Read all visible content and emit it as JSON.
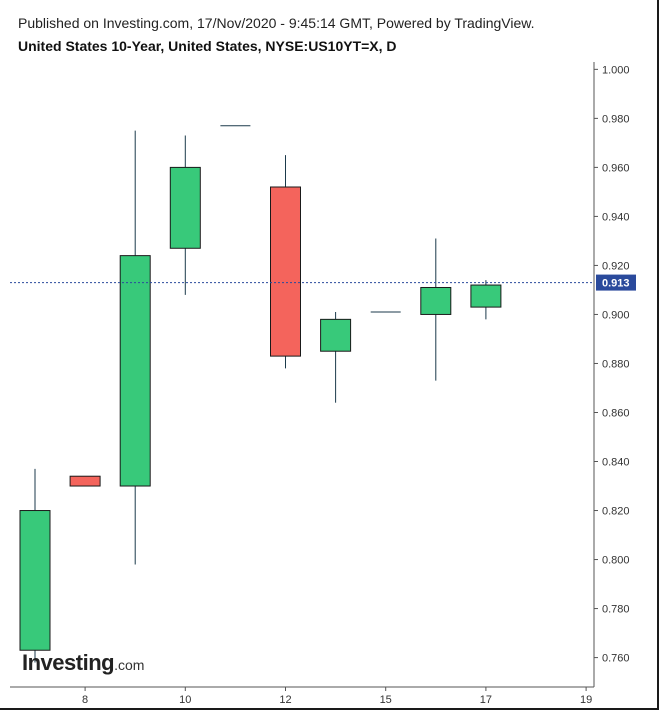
{
  "header": {
    "published": "Published on Investing.com, 17/Nov/2020 - 9:45:14 GMT, Powered by TradingView.",
    "title": "United States 10-Year, United States, NYSE:US10YT=X, D"
  },
  "logo": {
    "main": "Investing",
    "suffix": ".com"
  },
  "colors": {
    "up": "#38c97a",
    "down": "#f4645c",
    "wick": "#1b3a4b",
    "current_line": "#2a4a9c",
    "badge": "#2a4a9c"
  },
  "chart_data": {
    "type": "candlestick",
    "title": "United States 10-Year, United States, NYSE:US10YT=X, D",
    "x_tick_labels": [
      "8",
      "10",
      "12",
      "15",
      "17",
      "19"
    ],
    "y_tick_labels": [
      "1.000",
      "0.980",
      "0.960",
      "0.940",
      "0.920",
      "0.900",
      "0.880",
      "0.860",
      "0.840",
      "0.820",
      "0.800",
      "0.780",
      "0.760"
    ],
    "ylim": [
      0.748,
      1.003
    ],
    "current_price": 0.913,
    "current_price_label": "0.913",
    "candles": [
      {
        "open": 0.763,
        "high": 0.837,
        "low": 0.758,
        "close": 0.82
      },
      {
        "open": 0.834,
        "high": 0.834,
        "low": 0.83,
        "close": 0.83
      },
      {
        "open": 0.83,
        "high": 0.975,
        "low": 0.798,
        "close": 0.924
      },
      {
        "open": 0.927,
        "high": 0.973,
        "low": 0.908,
        "close": 0.96
      },
      {
        "open": 0.977,
        "high": 0.977,
        "low": 0.977,
        "close": 0.977
      },
      {
        "open": 0.952,
        "high": 0.965,
        "low": 0.878,
        "close": 0.883
      },
      {
        "open": 0.885,
        "high": 0.901,
        "low": 0.864,
        "close": 0.898
      },
      {
        "open": 0.901,
        "high": 0.901,
        "low": 0.901,
        "close": 0.901
      },
      {
        "open": 0.9,
        "high": 0.931,
        "low": 0.873,
        "close": 0.911
      },
      {
        "open": 0.903,
        "high": 0.914,
        "low": 0.898,
        "close": 0.912
      }
    ]
  }
}
